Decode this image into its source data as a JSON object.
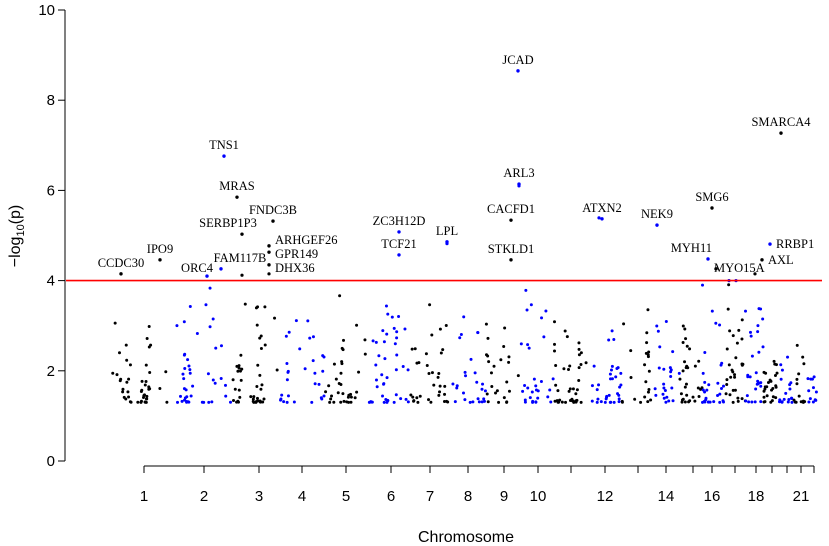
{
  "chart_data": {
    "type": "scatter",
    "subtype": "manhattan",
    "title": "",
    "xlabel": "Chromosome",
    "ylabel_prefix": "−log",
    "ylabel_sub": "10",
    "ylabel_suffix": "(p)",
    "ylim": [
      0,
      10
    ],
    "yticks": [
      0,
      2,
      4,
      6,
      8,
      10
    ],
    "xlim": [
      0,
      714
    ],
    "threshold": 4,
    "colors": {
      "odd": "#000000",
      "even": "#0000ff",
      "threshold": "#ff0000"
    },
    "chromosome_ticks": [
      {
        "chr": 1,
        "pos": 38,
        "label": "1"
      },
      {
        "chr": 2,
        "pos": 98,
        "label": "2"
      },
      {
        "chr": 3,
        "pos": 153,
        "label": "3"
      },
      {
        "chr": 4,
        "pos": 196,
        "label": "4"
      },
      {
        "chr": 5,
        "pos": 240,
        "label": "5"
      },
      {
        "chr": 6,
        "pos": 285,
        "label": "6"
      },
      {
        "chr": 7,
        "pos": 324,
        "label": "7"
      },
      {
        "chr": 8,
        "pos": 362,
        "label": "8"
      },
      {
        "chr": 9,
        "pos": 398,
        "label": "9"
      },
      {
        "chr": 10,
        "pos": 432,
        "label": "10"
      },
      {
        "chr": 11,
        "pos": 465,
        "label": ""
      },
      {
        "chr": 12,
        "pos": 499,
        "label": "12"
      },
      {
        "chr": 13,
        "pos": 532,
        "label": ""
      },
      {
        "chr": 14,
        "pos": 560,
        "label": "14"
      },
      {
        "chr": 15,
        "pos": 587,
        "label": ""
      },
      {
        "chr": 16,
        "pos": 606,
        "label": "16"
      },
      {
        "chr": 17,
        "pos": 629,
        "label": ""
      },
      {
        "chr": 18,
        "pos": 650,
        "label": "18"
      },
      {
        "chr": 19,
        "pos": 666,
        "label": ""
      },
      {
        "chr": 20,
        "pos": 681,
        "label": ""
      },
      {
        "chr": 21,
        "pos": 695,
        "label": "21"
      },
      {
        "chr": 22,
        "pos": 708,
        "label": ""
      }
    ],
    "hits": [
      {
        "gene": "CCDC30",
        "chr": 1,
        "pos": 15,
        "y": 4.15,
        "side": "top"
      },
      {
        "gene": "IPO9",
        "chr": 1,
        "pos": 54,
        "y": 4.46,
        "side": "top"
      },
      {
        "gene": "ORC4",
        "chr": 2,
        "pos": 101,
        "y": 4.1,
        "side": "top"
      },
      {
        "gene": "FAM117B",
        "chr": 2,
        "pos": 115,
        "y": 4.26,
        "side": "top"
      },
      {
        "gene": "TNS1",
        "chr": 2,
        "pos": 118,
        "y": 6.76,
        "side": "top"
      },
      {
        "gene": "MRAS",
        "chr": 3,
        "pos": 131,
        "y": 5.85,
        "side": "top"
      },
      {
        "gene": "SERBP1P3",
        "chr": 3,
        "pos": 136,
        "y": 5.03,
        "side": "top"
      },
      {
        "gene": "FNDC3B",
        "chr": 3,
        "pos": 167,
        "y": 5.32,
        "side": "top"
      },
      {
        "gene": "ARHGEF26",
        "chr": 3,
        "pos": 163,
        "y": 4.77,
        "side": "right"
      },
      {
        "gene": "GPR149",
        "chr": 3,
        "pos": 163,
        "y": 4.63,
        "side": "right"
      },
      {
        "gene": "DHX36",
        "chr": 3,
        "pos": 163,
        "y": 4.35,
        "side": "right"
      },
      {
        "gene": "ZC3H12D",
        "chr": 6,
        "pos": 293,
        "y": 5.08,
        "side": "top"
      },
      {
        "gene": "TCF21",
        "chr": 6,
        "pos": 293,
        "y": 4.57,
        "side": "top"
      },
      {
        "gene": "LPL",
        "chr": 8,
        "pos": 341,
        "y": 4.86,
        "side": "top"
      },
      {
        "gene": "CACFD1",
        "chr": 9,
        "pos": 405,
        "y": 5.34,
        "side": "top"
      },
      {
        "gene": "STKLD1",
        "chr": 9,
        "pos": 405,
        "y": 4.46,
        "side": "top"
      },
      {
        "gene": "JCAD",
        "chr": 10,
        "pos": 412,
        "y": 8.65,
        "side": "top"
      },
      {
        "gene": "ARL3",
        "chr": 10,
        "pos": 413,
        "y": 6.14,
        "side": "top"
      },
      {
        "gene": "ATXN2",
        "chr": 12,
        "pos": 496,
        "y": 5.37,
        "side": "top"
      },
      {
        "gene": "NEK9",
        "chr": 14,
        "pos": 551,
        "y": 5.23,
        "side": "top"
      },
      {
        "gene": "MYH11",
        "chr": 16,
        "pos": 602,
        "y": 4.48,
        "side": "top"
      },
      {
        "gene": "SMG6",
        "chr": 17,
        "pos": 606,
        "y": 5.61,
        "side": "top"
      },
      {
        "gene": "MYO15A",
        "chr": 17,
        "pos": 610,
        "y": 4.26,
        "side": "top"
      },
      {
        "gene": "AXL",
        "chr": 19,
        "pos": 656,
        "y": 4.46,
        "side": "right"
      },
      {
        "gene": "RRBP1",
        "chr": 20,
        "pos": 664,
        "y": 4.81,
        "side": "right"
      },
      {
        "gene": "SMARCA4",
        "chr": 19,
        "pos": 675,
        "y": 7.27,
        "side": "top"
      }
    ],
    "extra_points": [
      {
        "chr": 3,
        "pos": 163,
        "y": 4.15
      },
      {
        "chr": 3,
        "pos": 136,
        "y": 4.12
      },
      {
        "chr": 10,
        "pos": 413,
        "y": 6.1
      },
      {
        "chr": 12,
        "pos": 493,
        "y": 5.39
      },
      {
        "chr": 8,
        "pos": 341,
        "y": 4.82
      },
      {
        "chr": 19,
        "pos": 649,
        "y": 4.15
      },
      {
        "chr": 18,
        "pos": 623,
        "y": 4.0
      },
      {
        "chr": 18,
        "pos": 630,
        "y": 4.0
      }
    ],
    "background": {
      "seed": 7,
      "ymin": 1.3,
      "points_per_chromosome": [
        48,
        44,
        46,
        30,
        34,
        42,
        34,
        26,
        24,
        30,
        40,
        34,
        22,
        24,
        30,
        30,
        30,
        28,
        26,
        18,
        14,
        12
      ],
      "ymax_per_chromosome": [
        3.1,
        3.9,
        3.5,
        3.2,
        3.7,
        3.7,
        3.5,
        3.4,
        3.1,
        3.8,
        3.1,
        2.9,
        3.4,
        3.2,
        3.4,
        3.9,
        4.0,
        3.7,
        2.4,
        2.5,
        2.6,
        2.4
      ]
    }
  }
}
